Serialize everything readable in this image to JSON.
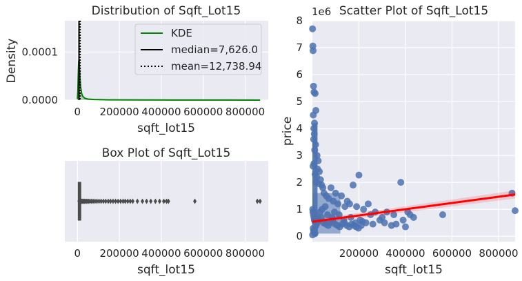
{
  "chart_data": [
    {
      "type": "area",
      "title": "Distribution of Sqft_Lot15",
      "xlabel": "sqft_lot15",
      "ylabel": "Density",
      "xlim": [
        -60000,
        910000
      ],
      "ylim": [
        0,
        0.000165
      ],
      "x_ticks": [
        0,
        200000,
        400000,
        600000,
        800000
      ],
      "x_tick_labels": [
        "0",
        "200000",
        "400000",
        "600000",
        "800000"
      ],
      "y_ticks": [
        0,
        0.0001
      ],
      "y_tick_labels": [
        "0.0000",
        "0.0001"
      ],
      "grid": true,
      "legend_position": "top-right",
      "series": [
        {
          "name": "KDE",
          "color": "#008000",
          "x": [
            0,
            2000,
            4000,
            6000,
            7626,
            9000,
            11000,
            13000,
            16000,
            20000,
            25000,
            35000,
            50000,
            80000,
            150000,
            300000,
            500000,
            700000,
            871200
          ],
          "y": [
            2e-06,
            1.8e-05,
            5.5e-05,
            8e-05,
            8.4e-05,
            7.8e-05,
            6e-05,
            4.2e-05,
            2.6e-05,
            1.4e-05,
            8e-06,
            4e-06,
            2.2e-06,
            1.2e-06,
            6e-07,
            3e-07,
            1.5e-07,
            1e-07,
            5e-08
          ]
        }
      ],
      "reference_lines": [
        {
          "label": "median=7,626.0",
          "value": 7626.0,
          "style": "solid",
          "color": "#000000"
        },
        {
          "label": "mean=12,738.94",
          "value": 12738.94,
          "style": "dotted",
          "color": "#000000"
        }
      ],
      "legend": [
        "KDE",
        "median=7,626.0",
        "mean=12,738.94"
      ]
    },
    {
      "type": "box",
      "title": "Box Plot of Sqft_Lot15",
      "xlabel": "sqft_lot15",
      "xlim": [
        -60000,
        910000
      ],
      "x_ticks": [
        0,
        200000,
        400000,
        600000,
        800000
      ],
      "x_tick_labels": [
        "0",
        "200000",
        "400000",
        "600000",
        "800000"
      ],
      "grid": true,
      "box": {
        "q1": 5100,
        "median": 7626,
        "q3": 10083,
        "whisker_low": 651,
        "whisker_high": 17550
      },
      "outliers": [
        18000,
        20000,
        23000,
        26000,
        30000,
        34000,
        38000,
        43000,
        48000,
        54000,
        60000,
        67000,
        75000,
        84000,
        93000,
        103000,
        113000,
        124000,
        135000,
        147000,
        158000,
        170000,
        182000,
        194000,
        206000,
        218000,
        228000,
        240000,
        252000,
        264000,
        286000,
        310000,
        330000,
        350000,
        372000,
        392000,
        412000,
        425000,
        434000,
        560000,
        858000,
        871200
      ],
      "color": "#4c4c4c"
    },
    {
      "type": "scatter",
      "title": "Scatter Plot of Sqft_Lot15",
      "xlabel": "sqft_lot15",
      "ylabel": "price",
      "y_offset_label": "1e6",
      "xlim": [
        0,
        871200
      ],
      "ylim": [
        -0.2,
        8.0
      ],
      "x_ticks": [
        200000,
        400000,
        600000,
        800000
      ],
      "x_tick_labels": [
        "200000",
        "400000",
        "600000",
        "800000"
      ],
      "y_ticks": [
        0,
        1,
        2,
        3,
        4,
        5,
        6,
        7,
        8
      ],
      "y_tick_labels": [
        "0",
        "1",
        "2",
        "3",
        "4",
        "5",
        "6",
        "7",
        "8"
      ],
      "grid": true,
      "point_color": "#4c72b0",
      "points": {
        "x": [
          651,
          2000,
          3000,
          5000,
          7000,
          12000,
          15000,
          4000,
          9000,
          6000,
          8000,
          5500,
          14000,
          10000,
          20000,
          25000,
          7000,
          3000,
          22000,
          30000,
          12000,
          18000,
          35000,
          15000,
          28000,
          40000,
          45000,
          50000,
          60000,
          70000,
          80000,
          90000,
          100000,
          110000,
          125000,
          140000,
          150000,
          160000,
          175000,
          190000,
          200000,
          220000,
          240000,
          250000,
          270000,
          300000,
          320000,
          350000,
          380000,
          410000,
          420000,
          435000,
          560000,
          858000,
          871200,
          1500,
          2500,
          4500,
          6500,
          8500,
          11000,
          13000,
          17000,
          24000,
          33000,
          42000,
          55000,
          65000,
          85000,
          95000,
          115000,
          135000,
          165000,
          185000,
          205000,
          215000,
          230000,
          260000,
          290000,
          310000,
          340000,
          360000,
          390000,
          400000,
          16000,
          21000,
          26000,
          38000,
          48000,
          58000,
          68000,
          78000,
          88000,
          98000,
          108000,
          118000,
          128000,
          138000,
          148000,
          158000,
          168000,
          178000,
          188000,
          198000,
          210000,
          3500,
          5200,
          6800,
          9500,
          11500,
          1000
        ],
        "y": [
          7.7,
          7.06,
          6.89,
          5.57,
          5.35,
          5.3,
          4.67,
          4.5,
          4.2,
          4.0,
          3.8,
          3.6,
          3.4,
          3.2,
          3.0,
          2.8,
          2.7,
          2.6,
          2.5,
          2.4,
          2.3,
          2.2,
          2.1,
          2.0,
          1.95,
          1.9,
          1.8,
          1.6,
          1.5,
          1.4,
          1.8,
          1.3,
          1.6,
          1.2,
          1.5,
          1.1,
          1.3,
          1.2,
          1.9,
          1.1,
          2.27,
          1.0,
          1.2,
          0.8,
          0.9,
          0.7,
          0.9,
          0.8,
          2.0,
          0.9,
          0.8,
          0.7,
          0.8,
          1.6,
          0.95,
          1.0,
          0.9,
          0.8,
          0.7,
          0.6,
          0.55,
          0.5,
          0.6,
          0.7,
          0.9,
          1.0,
          1.1,
          0.8,
          0.7,
          0.9,
          0.8,
          0.6,
          0.7,
          0.5,
          0.6,
          0.55,
          0.5,
          0.45,
          0.6,
          0.5,
          0.4,
          0.45,
          0.6,
          0.35,
          0.4,
          0.5,
          0.6,
          0.7,
          0.5,
          0.45,
          0.4,
          0.5,
          0.55,
          0.45,
          0.4,
          0.35,
          0.45,
          0.5,
          0.4,
          0.35,
          0.45,
          0.4,
          0.35,
          0.3,
          0.4,
          0.3,
          0.2,
          0.15,
          0.25,
          0.1,
          0.05
        ]
      },
      "regression": {
        "color": "#ff0000",
        "x": [
          0,
          871200
        ],
        "y": [
          0.54,
          1.55
        ]
      }
    }
  ]
}
